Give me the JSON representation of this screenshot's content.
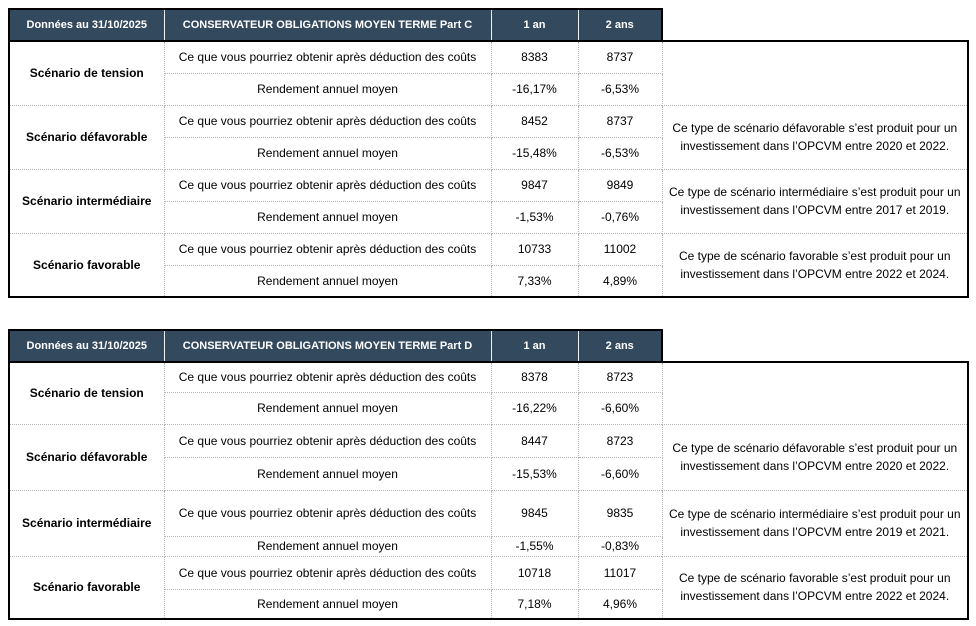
{
  "shared": {
    "row_label_obtain": "Ce que vous pourriez obtenir après déduction des coûts",
    "row_label_yield": "Rendement annuel moyen"
  },
  "tables": [
    {
      "date_header": "Données au 31/10/2025",
      "title": "CONSERVATEUR OBLIGATIONS MOYEN TERME Part C",
      "col_1an": "1 an",
      "col_2ans": "2 ans",
      "scenarios": [
        {
          "label": "Scénario de tension",
          "obtain_1an": "8383",
          "obtain_2ans": "8737",
          "yield_1an": "-16,17%",
          "yield_2ans": "-6,53%",
          "note": ""
        },
        {
          "label": "Scénario défavorable",
          "obtain_1an": "8452",
          "obtain_2ans": "8737",
          "yield_1an": "-15,48%",
          "yield_2ans": "-6,53%",
          "note": "Ce type de scénario défavorable s’est produit pour un investissement dans l’OPCVM entre 2020 et 2022."
        },
        {
          "label": "Scénario intermédiaire",
          "obtain_1an": "9847",
          "obtain_2ans": "9849",
          "yield_1an": "-1,53%",
          "yield_2ans": "-0,76%",
          "note": "Ce type de scénario intermédiaire s’est produit pour un investissement dans l’OPCVM entre 2017 et 2019."
        },
        {
          "label": "Scénario favorable",
          "obtain_1an": "10733",
          "obtain_2ans": "11002",
          "yield_1an": "7,33%",
          "yield_2ans": "4,89%",
          "note": "Ce type de scénario favorable s’est produit pour un investissement dans l’OPCVM entre 2022 et 2024."
        }
      ]
    },
    {
      "date_header": "Données au 31/10/2025",
      "title": "CONSERVATEUR OBLIGATIONS MOYEN TERME Part D",
      "col_1an": "1 an",
      "col_2ans": "2 ans",
      "scenarios": [
        {
          "label": "Scénario de tension",
          "obtain_1an": "8378",
          "obtain_2ans": "8723",
          "yield_1an": "-16,22%",
          "yield_2ans": "-6,60%",
          "note": ""
        },
        {
          "label": "Scénario défavorable",
          "obtain_1an": "8447",
          "obtain_2ans": "8723",
          "yield_1an": "-15,53%",
          "yield_2ans": "-6,60%",
          "note": "Ce type de scénario défavorable s’est produit pour un investissement dans l’OPCVM entre 2020 et 2022."
        },
        {
          "label": "Scénario intermédiaire",
          "obtain_1an": "9845",
          "obtain_2ans": "9835",
          "yield_1an": "-1,55%",
          "yield_2ans": "-0,83%",
          "note": "Ce type de scénario intermédiaire s’est produit pour un investissement dans l’OPCVM entre 2019 et 2021."
        },
        {
          "label": "Scénario favorable",
          "obtain_1an": "10718",
          "obtain_2ans": "11017",
          "yield_1an": "7,18%",
          "yield_2ans": "4,96%",
          "note": "Ce type de scénario favorable s’est produit pour un investissement dans l’OPCVM entre 2022 et 2024."
        }
      ]
    }
  ],
  "colors": {
    "header_bg": "#33495E",
    "header_text": "#FFFFFF",
    "grid_dotted": "#B7B7B7",
    "outer_border": "#000000",
    "body_text": "#000000"
  }
}
